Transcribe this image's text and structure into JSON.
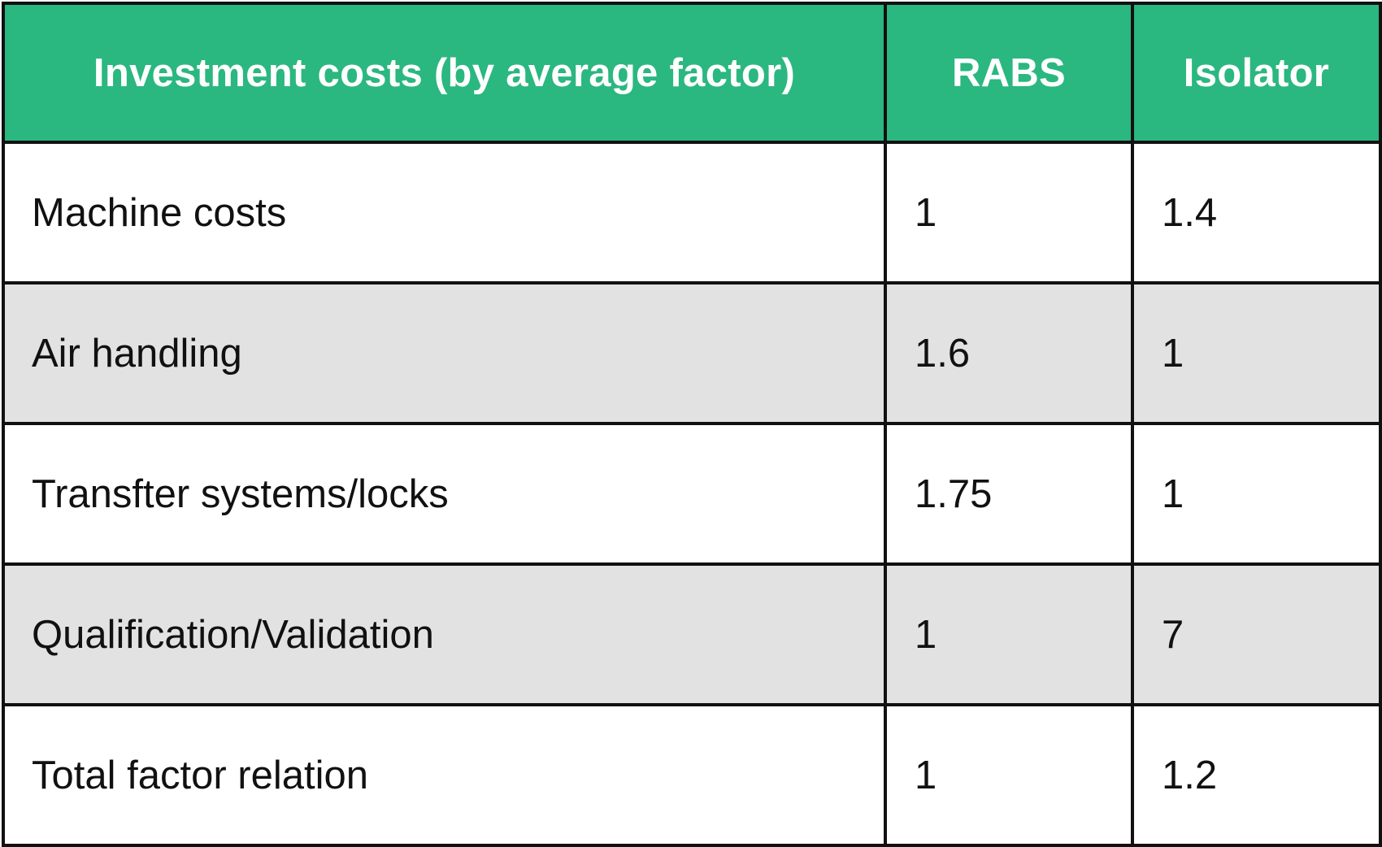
{
  "table": {
    "headers": [
      "Investment costs (by average factor)",
      "RABS",
      "Isolator"
    ],
    "rows": [
      {
        "label": "Machine costs",
        "rabs": "1",
        "isolator": "1.4"
      },
      {
        "label": "Air handling",
        "rabs": "1.6",
        "isolator": "1"
      },
      {
        "label": "Transfter systems/locks",
        "rabs": "1.75",
        "isolator": "1"
      },
      {
        "label": "Qualification/Validation",
        "rabs": "1",
        "isolator": "7"
      },
      {
        "label": "Total factor relation",
        "rabs": "1",
        "isolator": "1.2"
      }
    ]
  },
  "colors": {
    "header_bg": "#2bb780",
    "header_text": "#ffffff",
    "shaded_row_bg": "#e2e2e2",
    "border": "#111111"
  }
}
